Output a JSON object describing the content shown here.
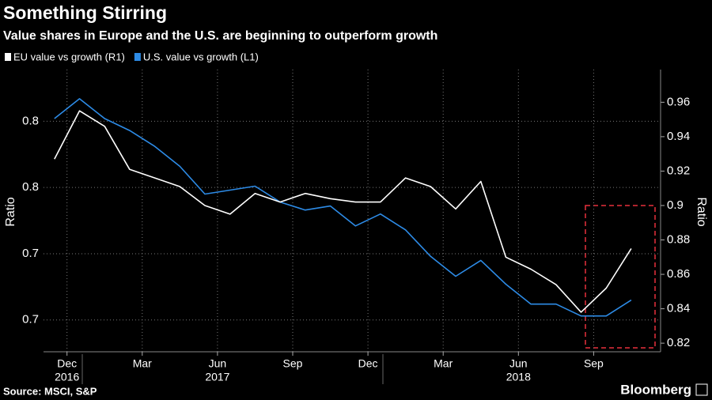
{
  "chart_data": {
    "type": "line",
    "title": "Something Stirring",
    "subtitle": "Value shares in Europe and the U.S. are beginning to outperform growth",
    "ylabel": "Ratio",
    "y2label": "Ratio",
    "source": "Source: MSCI, S&P",
    "brand": "Bloomberg",
    "x": [
      "2016-11",
      "2016-12",
      "2017-01",
      "2017-02",
      "2017-03",
      "2017-04",
      "2017-05",
      "2017-06",
      "2017-07",
      "2017-08",
      "2017-09",
      "2017-10",
      "2017-11",
      "2017-12",
      "2018-01",
      "2018-02",
      "2018-03",
      "2018-04",
      "2018-05",
      "2018-06",
      "2018-07",
      "2018-08",
      "2018-09",
      "2018-10"
    ],
    "xticks": [
      {
        "value": "2016-12",
        "label": "Dec"
      },
      {
        "value": "2017-03",
        "label": "Mar"
      },
      {
        "value": "2017-06",
        "label": "Jun"
      },
      {
        "value": "2017-09",
        "label": "Sep"
      },
      {
        "value": "2017-12",
        "label": "Dec"
      },
      {
        "value": "2018-03",
        "label": "Mar"
      },
      {
        "value": "2018-06",
        "label": "Jun"
      },
      {
        "value": "2018-09",
        "label": "Sep"
      }
    ],
    "year_labels": [
      {
        "value": "2016-12",
        "label": "2016"
      },
      {
        "value": "2017-06",
        "label": "2017"
      },
      {
        "value": "2018-06",
        "label": "2018"
      }
    ],
    "series": [
      {
        "name": "EU value vs growth (R1)",
        "color": "#ffffff",
        "axis": "y2",
        "values": [
          0.927,
          0.955,
          0.946,
          0.921,
          0.916,
          0.911,
          0.9,
          0.895,
          0.907,
          0.902,
          0.907,
          0.904,
          0.902,
          0.902,
          0.916,
          0.911,
          0.898,
          0.914,
          0.87,
          0.863,
          0.854,
          0.838,
          0.852,
          0.875
        ]
      },
      {
        "name": "U.S. value vs growth (L1)",
        "color": "#2d8be6",
        "axis": "y",
        "values": [
          0.802,
          0.817,
          0.802,
          0.793,
          0.781,
          0.766,
          0.745,
          0.748,
          0.751,
          0.739,
          0.733,
          0.736,
          0.721,
          0.73,
          0.718,
          0.698,
          0.683,
          0.695,
          0.677,
          0.662,
          0.662,
          0.653,
          0.653,
          0.665
        ]
      }
    ],
    "ylim": [
      0.626,
      0.839
    ],
    "yticks": [
      0.8,
      {
        "value": 0.75,
        "label": "0.8"
      },
      0.7,
      {
        "value": 0.65,
        "label": "0.7"
      }
    ],
    "y2lim": [
      0.815,
      0.979
    ],
    "y2ticks": [
      0.82,
      0.84,
      0.86,
      0.88,
      0.9,
      0.92,
      0.94,
      0.96
    ],
    "grid": true,
    "legend": "top-left"
  }
}
